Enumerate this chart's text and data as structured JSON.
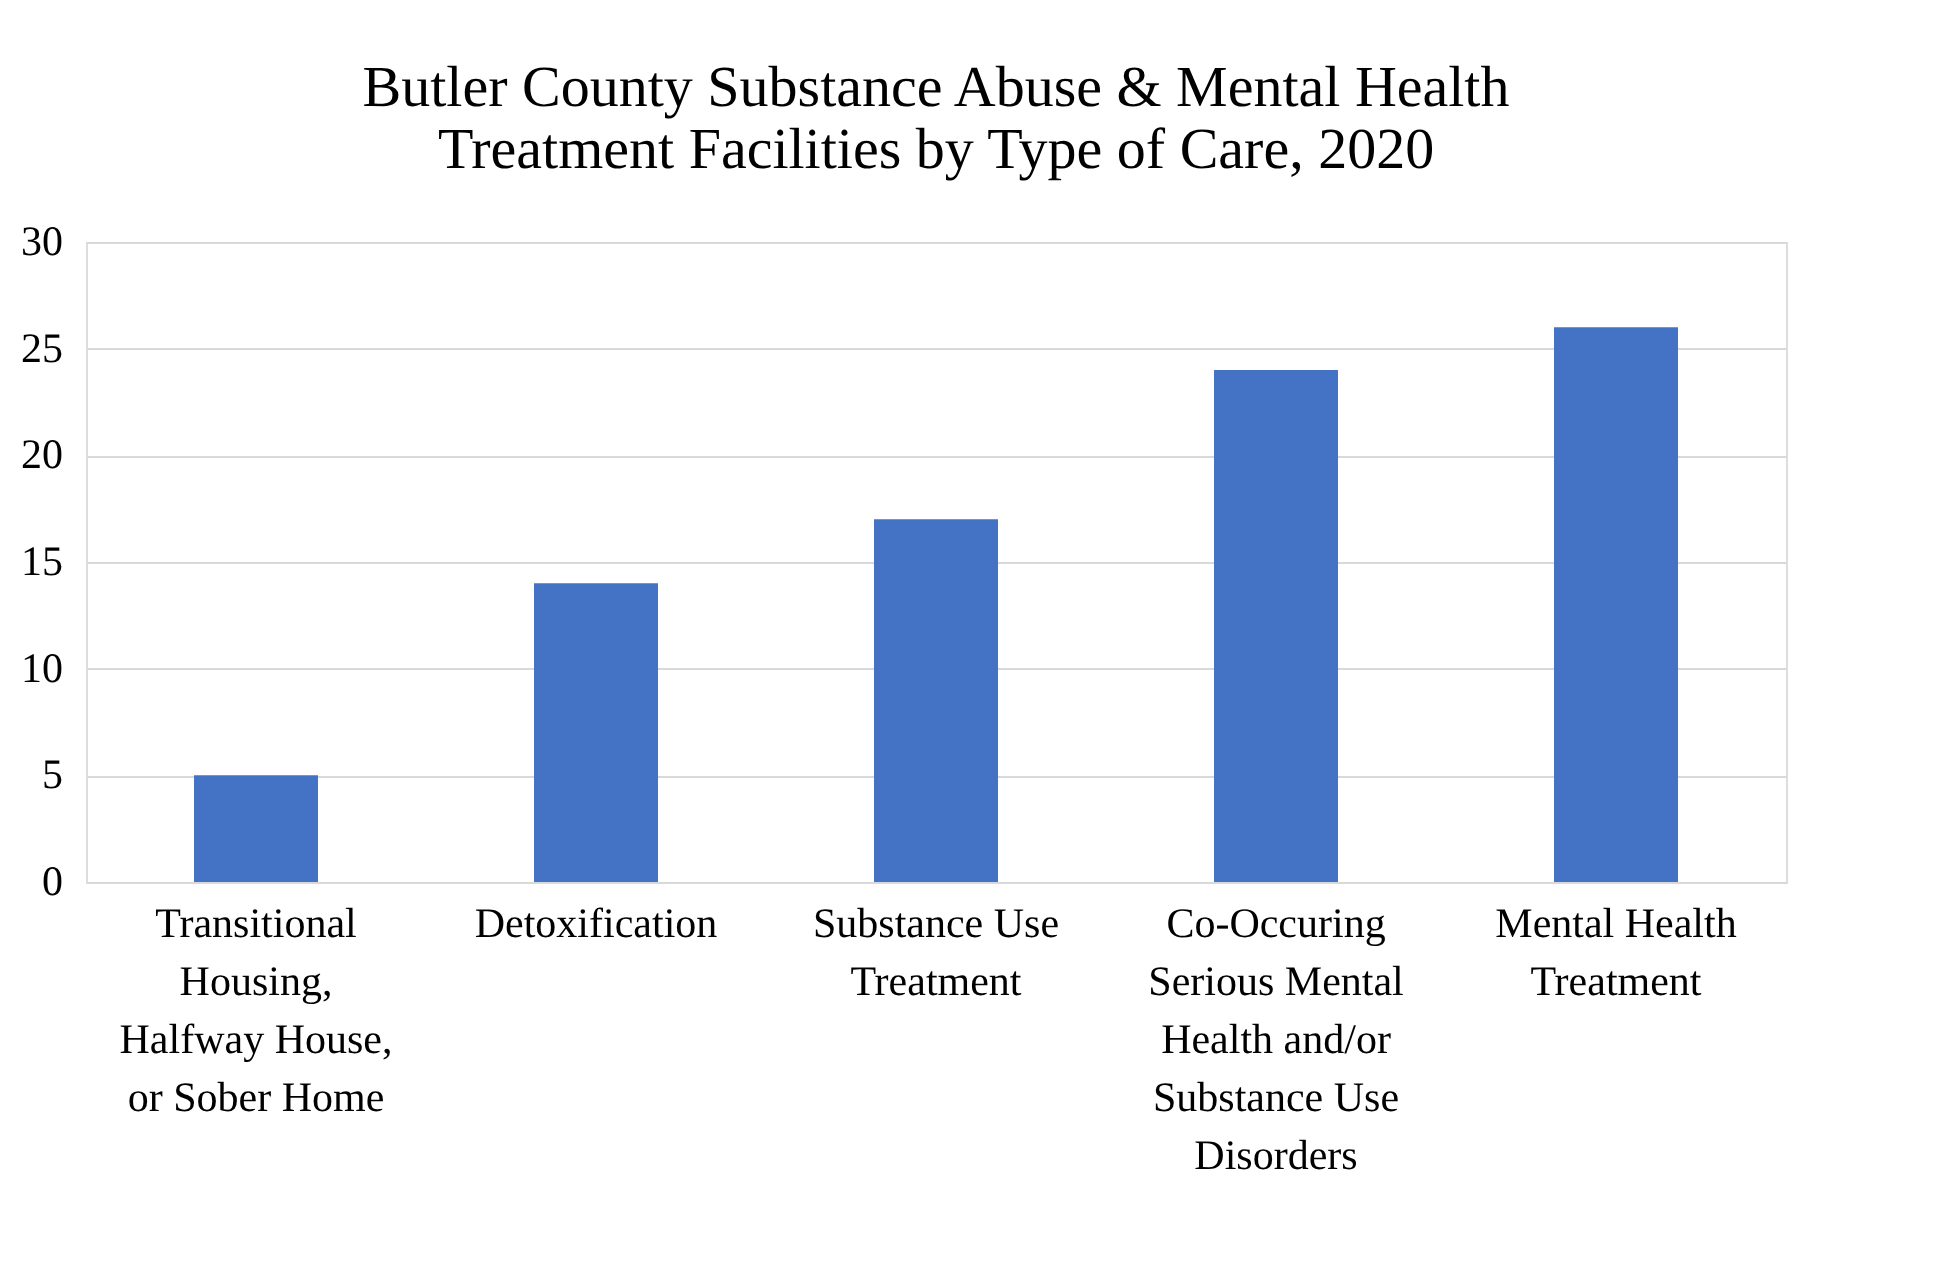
{
  "chart_data": {
    "type": "bar",
    "title": "Butler County Substance Abuse & Mental Health Treatment Facilities by Type of Care, 2020",
    "categories": [
      "Transitional Housing, Halfway House, or Sober Home",
      "Detoxification",
      "Substance Use Treatment",
      "Co-Occuring Serious Mental Health and/or Substance Use Disorders",
      "Mental Health Treatment"
    ],
    "values": [
      5,
      14,
      17,
      24,
      26
    ],
    "color": "#4472c4",
    "ylim": [
      0,
      30
    ],
    "yticks": [
      0,
      5,
      10,
      15,
      20,
      25,
      30
    ],
    "grid": "y"
  }
}
